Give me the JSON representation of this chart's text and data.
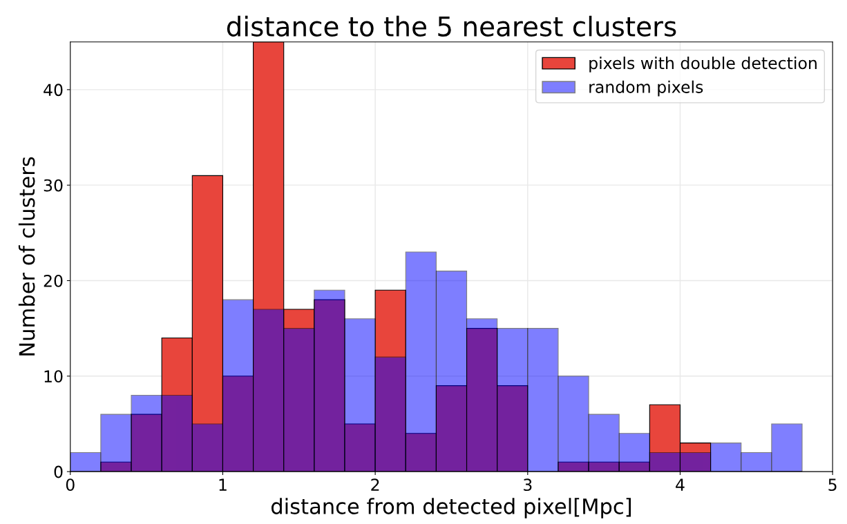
{
  "chart_data": {
    "type": "histogram",
    "title": "distance to the 5 nearest clusters",
    "xlabel": "distance from detected pixel[Mpc]",
    "ylabel": "Number of clusters",
    "bins": [
      0,
      0.2,
      0.4,
      0.6,
      0.8,
      1.0,
      1.2,
      1.4,
      1.6,
      1.8,
      2.0,
      2.2,
      2.4,
      2.6,
      2.8,
      3.0,
      3.2,
      3.4,
      3.6,
      3.8,
      4.0,
      4.2,
      4.4,
      4.6,
      4.8
    ],
    "series": [
      {
        "name": "pixels with double detection",
        "color": "#e8453c",
        "values": [
          0,
          1,
          6,
          14,
          31,
          10,
          45,
          17,
          18,
          5,
          19,
          4,
          9,
          15,
          9,
          0,
          1,
          1,
          1,
          7,
          3,
          0,
          0,
          0
        ]
      },
      {
        "name": "random pixels",
        "color": "#0000ff",
        "values": [
          2,
          6,
          8,
          8,
          5,
          18,
          17,
          15,
          19,
          16,
          12,
          23,
          21,
          16,
          15,
          15,
          10,
          6,
          4,
          2,
          2,
          3,
          2,
          5
        ]
      }
    ],
    "xlim": [
      0,
      5
    ],
    "ylim": [
      0,
      45
    ],
    "xticks": [
      0,
      1,
      2,
      3,
      4,
      5
    ],
    "yticks": [
      0,
      10,
      20,
      30,
      40
    ],
    "grid": true,
    "legend": "top right"
  }
}
